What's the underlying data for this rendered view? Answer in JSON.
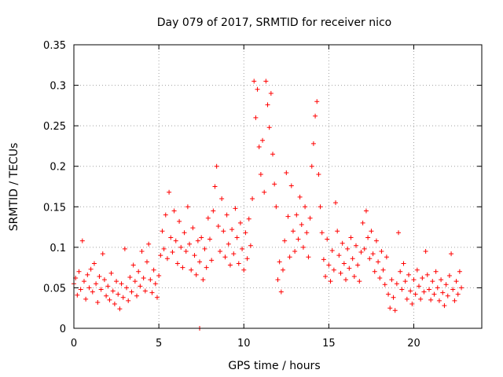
{
  "chart_data": {
    "type": "scatter",
    "title": "Day 079 of 2017, SRMTID for receiver nico",
    "xlabel": "GPS time / hours",
    "ylabel": "SRMTID / TECUs",
    "xlim": [
      0,
      24
    ],
    "ylim": [
      0,
      0.35
    ],
    "x_ticks": [
      0,
      5,
      10,
      15,
      20
    ],
    "x_tick_labels": [
      "0",
      "5",
      "10",
      "15",
      "20"
    ],
    "y_ticks": [
      0,
      0.05,
      0.1,
      0.15,
      0.2,
      0.25,
      0.3,
      0.35
    ],
    "y_tick_labels": [
      "0",
      "0.05",
      "0.1",
      "0.15",
      "0.2",
      "0.25",
      "0.3",
      "0.35"
    ],
    "grid": true,
    "marker": "+",
    "color": "#ff0000",
    "series": [
      {
        "name": "SRMTID",
        "points": [
          [
            0.0,
            0.055
          ],
          [
            0.1,
            0.062
          ],
          [
            0.2,
            0.041
          ],
          [
            0.3,
            0.07
          ],
          [
            0.4,
            0.048
          ],
          [
            0.5,
            0.108
          ],
          [
            0.6,
            0.058
          ],
          [
            0.7,
            0.036
          ],
          [
            0.8,
            0.066
          ],
          [
            0.9,
            0.05
          ],
          [
            1.0,
            0.073
          ],
          [
            1.1,
            0.045
          ],
          [
            1.2,
            0.08
          ],
          [
            1.3,
            0.055
          ],
          [
            1.4,
            0.032
          ],
          [
            1.5,
            0.064
          ],
          [
            1.6,
            0.048
          ],
          [
            1.7,
            0.092
          ],
          [
            1.8,
            0.06
          ],
          [
            1.9,
            0.04
          ],
          [
            2.0,
            0.052
          ],
          [
            2.1,
            0.035
          ],
          [
            2.2,
            0.068
          ],
          [
            2.3,
            0.046
          ],
          [
            2.4,
            0.03
          ],
          [
            2.5,
            0.058
          ],
          [
            2.6,
            0.042
          ],
          [
            2.7,
            0.024
          ],
          [
            2.8,
            0.055
          ],
          [
            2.9,
            0.038
          ],
          [
            3.0,
            0.098
          ],
          [
            3.1,
            0.05
          ],
          [
            3.2,
            0.034
          ],
          [
            3.3,
            0.063
          ],
          [
            3.4,
            0.045
          ],
          [
            3.5,
            0.078
          ],
          [
            3.6,
            0.058
          ],
          [
            3.7,
            0.04
          ],
          [
            3.8,
            0.07
          ],
          [
            3.9,
            0.052
          ],
          [
            4.0,
            0.095
          ],
          [
            4.1,
            0.062
          ],
          [
            4.2,
            0.046
          ],
          [
            4.3,
            0.082
          ],
          [
            4.4,
            0.104
          ],
          [
            4.5,
            0.06
          ],
          [
            4.6,
            0.044
          ],
          [
            4.7,
            0.072
          ],
          [
            4.8,
            0.055
          ],
          [
            4.9,
            0.038
          ],
          [
            5.0,
            0.065
          ],
          [
            5.1,
            0.09
          ],
          [
            5.2,
            0.12
          ],
          [
            5.3,
            0.098
          ],
          [
            5.4,
            0.14
          ],
          [
            5.5,
            0.086
          ],
          [
            5.6,
            0.168
          ],
          [
            5.7,
            0.112
          ],
          [
            5.8,
            0.094
          ],
          [
            5.9,
            0.145
          ],
          [
            6.0,
            0.108
          ],
          [
            6.1,
            0.08
          ],
          [
            6.2,
            0.132
          ],
          [
            6.3,
            0.1
          ],
          [
            6.4,
            0.075
          ],
          [
            6.5,
            0.118
          ],
          [
            6.6,
            0.095
          ],
          [
            6.7,
            0.15
          ],
          [
            6.8,
            0.104
          ],
          [
            6.9,
            0.072
          ],
          [
            7.0,
            0.124
          ],
          [
            7.1,
            0.09
          ],
          [
            7.2,
            0.066
          ],
          [
            7.3,
            0.108
          ],
          [
            7.4,
            0.082
          ],
          [
            7.5,
            0.112
          ],
          [
            7.6,
            0.06
          ],
          [
            7.7,
            0.098
          ],
          [
            7.8,
            0.075
          ],
          [
            7.9,
            0.136
          ],
          [
            8.0,
            0.11
          ],
          [
            8.1,
            0.084
          ],
          [
            8.2,
            0.145
          ],
          [
            8.3,
            0.175
          ],
          [
            8.4,
            0.2
          ],
          [
            8.5,
            0.126
          ],
          [
            8.6,
            0.095
          ],
          [
            8.7,
            0.16
          ],
          [
            8.8,
            0.12
          ],
          [
            8.9,
            0.088
          ],
          [
            9.0,
            0.14
          ],
          [
            9.1,
            0.104
          ],
          [
            9.2,
            0.078
          ],
          [
            9.3,
            0.122
          ],
          [
            9.4,
            0.092
          ],
          [
            9.5,
            0.148
          ],
          [
            9.6,
            0.112
          ],
          [
            9.7,
            0.08
          ],
          [
            9.8,
            0.13
          ],
          [
            9.9,
            0.098
          ],
          [
            10.0,
            0.072
          ],
          [
            10.1,
            0.118
          ],
          [
            10.2,
            0.086
          ],
          [
            10.3,
            0.135
          ],
          [
            10.4,
            0.102
          ],
          [
            10.5,
            0.16
          ],
          [
            10.6,
            0.305
          ],
          [
            10.7,
            0.26
          ],
          [
            10.8,
            0.295
          ],
          [
            10.9,
            0.224
          ],
          [
            11.0,
            0.19
          ],
          [
            11.1,
            0.232
          ],
          [
            11.2,
            0.168
          ],
          [
            11.3,
            0.305
          ],
          [
            11.4,
            0.276
          ],
          [
            11.5,
            0.248
          ],
          [
            11.6,
            0.29
          ],
          [
            11.7,
            0.215
          ],
          [
            11.8,
            0.178
          ],
          [
            11.9,
            0.15
          ],
          [
            12.0,
            0.06
          ],
          [
            12.1,
            0.082
          ],
          [
            12.2,
            0.045
          ],
          [
            12.3,
            0.072
          ],
          [
            12.4,
            0.108
          ],
          [
            12.5,
            0.192
          ],
          [
            12.6,
            0.138
          ],
          [
            12.7,
            0.088
          ],
          [
            12.8,
            0.176
          ],
          [
            12.9,
            0.12
          ],
          [
            13.0,
            0.095
          ],
          [
            13.1,
            0.14
          ],
          [
            13.2,
            0.11
          ],
          [
            13.3,
            0.162
          ],
          [
            13.4,
            0.128
          ],
          [
            13.5,
            0.1
          ],
          [
            13.6,
            0.15
          ],
          [
            13.7,
            0.118
          ],
          [
            13.8,
            0.088
          ],
          [
            13.9,
            0.136
          ],
          [
            14.0,
            0.2
          ],
          [
            14.1,
            0.228
          ],
          [
            14.2,
            0.262
          ],
          [
            14.3,
            0.28
          ],
          [
            14.4,
            0.19
          ],
          [
            14.5,
            0.15
          ],
          [
            14.6,
            0.118
          ],
          [
            14.7,
            0.085
          ],
          [
            14.8,
            0.064
          ],
          [
            14.9,
            0.11
          ],
          [
            15.0,
            0.078
          ],
          [
            15.1,
            0.058
          ],
          [
            15.2,
            0.096
          ],
          [
            15.3,
            0.072
          ],
          [
            15.4,
            0.155
          ],
          [
            15.5,
            0.12
          ],
          [
            15.6,
            0.09
          ],
          [
            15.7,
            0.068
          ],
          [
            15.8,
            0.105
          ],
          [
            15.9,
            0.08
          ],
          [
            16.0,
            0.06
          ],
          [
            16.1,
            0.098
          ],
          [
            16.2,
            0.074
          ],
          [
            16.3,
            0.112
          ],
          [
            16.4,
            0.086
          ],
          [
            16.5,
            0.064
          ],
          [
            16.6,
            0.102
          ],
          [
            16.7,
            0.078
          ],
          [
            16.8,
            0.058
          ],
          [
            16.9,
            0.094
          ],
          [
            17.0,
            0.13
          ],
          [
            17.1,
            0.098
          ],
          [
            17.2,
            0.145
          ],
          [
            17.3,
            0.112
          ],
          [
            17.4,
            0.086
          ],
          [
            17.5,
            0.12
          ],
          [
            17.6,
            0.092
          ],
          [
            17.7,
            0.07
          ],
          [
            17.8,
            0.108
          ],
          [
            17.9,
            0.082
          ],
          [
            18.0,
            0.062
          ],
          [
            18.1,
            0.095
          ],
          [
            18.2,
            0.072
          ],
          [
            18.3,
            0.054
          ],
          [
            18.4,
            0.088
          ],
          [
            18.5,
            0.042
          ],
          [
            18.6,
            0.025
          ],
          [
            18.7,
            0.06
          ],
          [
            18.8,
            0.038
          ],
          [
            18.9,
            0.022
          ],
          [
            19.0,
            0.055
          ],
          [
            19.1,
            0.118
          ],
          [
            19.2,
            0.07
          ],
          [
            19.3,
            0.048
          ],
          [
            19.4,
            0.08
          ],
          [
            19.5,
            0.058
          ],
          [
            19.6,
            0.036
          ],
          [
            19.7,
            0.066
          ],
          [
            19.8,
            0.046
          ],
          [
            19.9,
            0.03
          ],
          [
            20.0,
            0.06
          ],
          [
            20.1,
            0.042
          ],
          [
            20.2,
            0.072
          ],
          [
            20.3,
            0.052
          ],
          [
            20.4,
            0.036
          ],
          [
            20.5,
            0.062
          ],
          [
            20.6,
            0.045
          ],
          [
            20.7,
            0.095
          ],
          [
            20.8,
            0.066
          ],
          [
            20.9,
            0.048
          ],
          [
            21.0,
            0.035
          ],
          [
            21.1,
            0.058
          ],
          [
            21.2,
            0.042
          ],
          [
            21.3,
            0.07
          ],
          [
            21.4,
            0.05
          ],
          [
            21.5,
            0.034
          ],
          [
            21.6,
            0.06
          ],
          [
            21.7,
            0.044
          ],
          [
            21.8,
            0.028
          ],
          [
            21.9,
            0.054
          ],
          [
            22.0,
            0.04
          ],
          [
            22.1,
            0.065
          ],
          [
            22.2,
            0.092
          ],
          [
            22.3,
            0.048
          ],
          [
            22.4,
            0.034
          ],
          [
            22.5,
            0.058
          ],
          [
            22.6,
            0.042
          ],
          [
            22.7,
            0.07
          ],
          [
            22.8,
            0.05
          ],
          [
            7.4,
            0.0
          ]
        ]
      }
    ]
  }
}
